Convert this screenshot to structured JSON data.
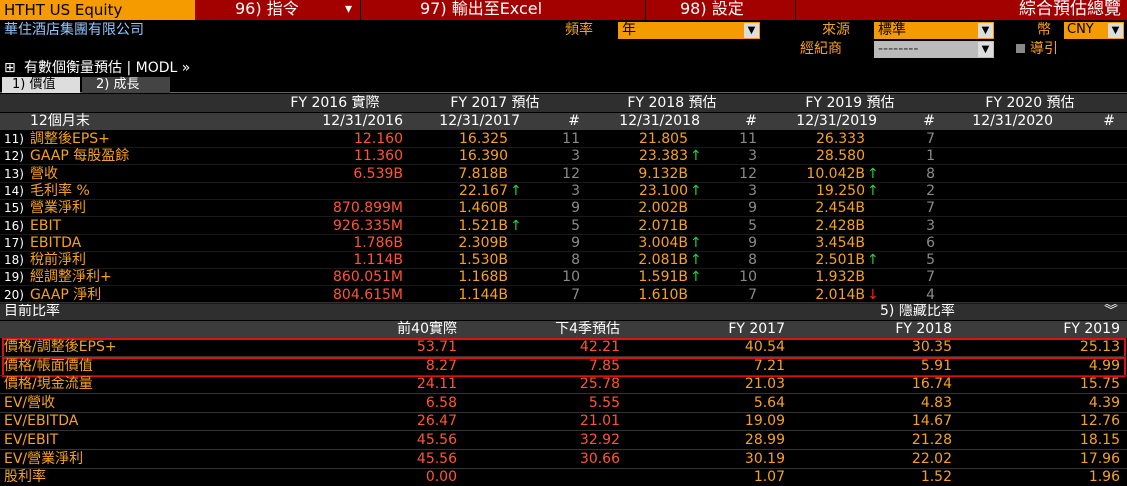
{
  "topbar": {
    "ticker": "HTHT US Equity",
    "menu": [
      "96) 指令",
      "97) 輸出至Excel",
      "98) 設定"
    ],
    "title": "綜合預估總覽"
  },
  "header": {
    "company": "華住酒店集團有限公司",
    "freq_label": "頻率",
    "freq": "年",
    "source_label": "來源",
    "source": "標準",
    "currency_label": "幣",
    "currency": "CNY",
    "broker_label": "經紀商",
    "broker": "--------",
    "guide": "導引"
  },
  "notice": "有數個衡量預估 | MODL »",
  "tabs": [
    "1) 價值",
    "2) 成長"
  ],
  "estimates": {
    "periods": [
      "FY 2016 實際",
      "FY 2017 預估",
      "FY 2018 預估",
      "FY 2019 預估",
      "FY 2020 預估"
    ],
    "row_label": "12個月末",
    "dates": [
      "12/31/2016",
      "12/31/2017",
      "12/31/2018",
      "12/31/2019",
      "12/31/2020"
    ],
    "count_header": "#",
    "rows": [
      {
        "num": "11)",
        "label": "調整後EPS+",
        "actual": "12.160",
        "est": [
          {
            "value": "16.325",
            "count": "11"
          },
          {
            "value": "21.805",
            "count": "11"
          },
          {
            "value": "26.333",
            "count": "7"
          }
        ]
      },
      {
        "num": "12)",
        "label": "GAAP 每股盈餘",
        "actual": "11.360",
        "est": [
          {
            "value": "16.390",
            "count": "3"
          },
          {
            "value": "23.383",
            "trend": "↑",
            "count": "3"
          },
          {
            "value": "28.580",
            "count": "1"
          }
        ]
      },
      {
        "num": "13)",
        "label": "營收",
        "actual": "6.539B",
        "est": [
          {
            "value": "7.818B",
            "count": "12"
          },
          {
            "value": "9.132B",
            "count": "12"
          },
          {
            "value": "10.042B",
            "trend": "↑",
            "count": "8"
          }
        ]
      },
      {
        "num": "14)",
        "label": "毛利率 %",
        "est": [
          {
            "value": "22.167",
            "trend": "↑",
            "count": "3"
          },
          {
            "value": "23.100",
            "trend": "↑",
            "count": "3"
          },
          {
            "value": "19.250",
            "trend": "↑",
            "count": "2"
          }
        ]
      },
      {
        "num": "15)",
        "label": "營業淨利",
        "actual": "870.899M",
        "est": [
          {
            "value": "1.460B",
            "count": "9"
          },
          {
            "value": "2.002B",
            "count": "9"
          },
          {
            "value": "2.454B",
            "count": "7"
          }
        ]
      },
      {
        "num": "16)",
        "label": "EBIT",
        "actual": "926.335M",
        "est": [
          {
            "value": "1.521B",
            "trend": "↑",
            "count": "5"
          },
          {
            "value": "2.071B",
            "count": "5"
          },
          {
            "value": "2.428B",
            "count": "3"
          }
        ]
      },
      {
        "num": "17)",
        "label": "EBITDA",
        "actual": "1.786B",
        "est": [
          {
            "value": "2.309B",
            "count": "9"
          },
          {
            "value": "3.004B",
            "trend": "↑",
            "count": "9"
          },
          {
            "value": "3.454B",
            "count": "6"
          }
        ]
      },
      {
        "num": "18)",
        "label": "稅前淨利",
        "actual": "1.114B",
        "est": [
          {
            "value": "1.530B",
            "count": "8"
          },
          {
            "value": "2.081B",
            "trend": "↑",
            "count": "8"
          },
          {
            "value": "2.501B",
            "trend": "↑",
            "count": "5"
          }
        ]
      },
      {
        "num": "19)",
        "label": "經調整淨利+",
        "actual": "860.051M",
        "est": [
          {
            "value": "1.168B",
            "count": "10"
          },
          {
            "value": "1.591B",
            "trend": "↑",
            "count": "10"
          },
          {
            "value": "1.932B",
            "count": "7"
          }
        ]
      },
      {
        "num": "20)",
        "label": "GAAP 淨利",
        "actual": "804.615M",
        "est": [
          {
            "value": "1.144B",
            "count": "7"
          },
          {
            "value": "1.610B",
            "count": "7"
          },
          {
            "value": "2.014B",
            "trend": "↓",
            "count": "4"
          }
        ]
      }
    ]
  },
  "ratios": {
    "title": "目前比率",
    "hide": "5) 隱藏比率",
    "columns": [
      "前40實際",
      "下4季預估",
      "FY 2017",
      "FY 2018",
      "FY 2019"
    ],
    "rows": [
      {
        "label": "價格/調整後EPS+",
        "values": [
          "53.71",
          "42.21",
          "40.54",
          "30.35",
          "25.13"
        ]
      },
      {
        "label": "價格/帳面價值",
        "values": [
          "8.27",
          "7.85",
          "7.21",
          "5.91",
          "4.99"
        ]
      },
      {
        "label": "價格/現金流量",
        "values": [
          "24.11",
          "25.78",
          "21.03",
          "16.74",
          "15.75"
        ]
      },
      {
        "label": "EV/營收",
        "values": [
          "6.58",
          "5.55",
          "5.64",
          "4.83",
          "4.39"
        ]
      },
      {
        "label": "EV/EBITDA",
        "values": [
          "26.47",
          "21.01",
          "19.09",
          "14.67",
          "12.76"
        ]
      },
      {
        "label": "EV/EBIT",
        "values": [
          "45.56",
          "32.92",
          "28.99",
          "21.28",
          "18.15"
        ]
      },
      {
        "label": "EV/營業淨利",
        "values": [
          "45.56",
          "30.66",
          "30.19",
          "22.02",
          "17.96"
        ]
      },
      {
        "label": "股利率",
        "values": [
          "0.00",
          null,
          "1.07",
          "1.52",
          "1.96"
        ]
      }
    ]
  }
}
